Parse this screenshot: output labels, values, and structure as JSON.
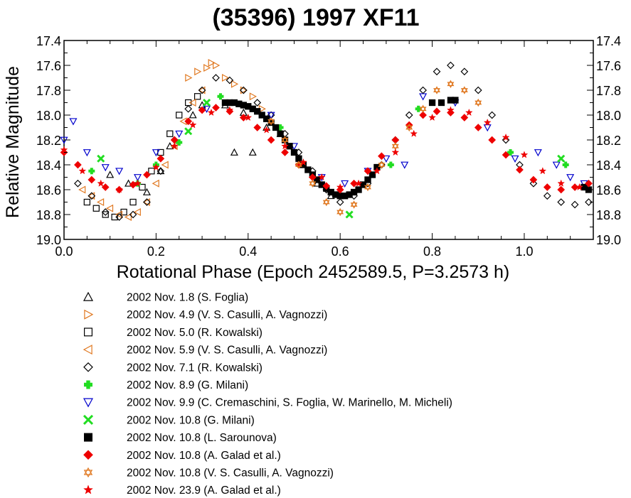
{
  "chart_data": {
    "type": "scatter",
    "title": "(35396) 1997 XF11",
    "xlabel": "Rotational Phase (Epoch 2452589.5, P=3.2573 h)",
    "ylabel": "Relative Magnitude",
    "xlim": [
      0.0,
      1.15
    ],
    "ylim": [
      19.0,
      17.4
    ],
    "y_inverted": true,
    "x_ticks": [
      "0.0",
      "0.2",
      "0.4",
      "0.6",
      "0.8",
      "1.0"
    ],
    "x_tick_values": [
      0.0,
      0.2,
      0.4,
      0.6,
      0.8,
      1.0
    ],
    "y_ticks": [
      "17.4",
      "17.6",
      "17.8",
      "18.0",
      "18.2",
      "18.4",
      "18.6",
      "18.8",
      "19.0"
    ],
    "y_tick_values": [
      17.4,
      17.6,
      17.8,
      18.0,
      18.2,
      18.4,
      18.6,
      18.8,
      19.0
    ],
    "y_ticks_mirrored_right": true,
    "grid": false,
    "legend_position": "below-plot",
    "series": [
      {
        "name": "2002 Nov. 1.8 (S. Foglia)",
        "marker": "triangle-up",
        "color": "#000000",
        "filled": false,
        "x": [
          0.1,
          0.14,
          0.18,
          0.21,
          0.23,
          0.28,
          0.3,
          0.35,
          0.37,
          0.39,
          0.41,
          0.44,
          0.47,
          0.52,
          0.55,
          0.58
        ],
        "y": [
          18.48,
          18.55,
          18.62,
          18.45,
          18.25,
          18.0,
          17.92,
          17.92,
          18.3,
          17.98,
          18.3,
          18.1,
          18.15,
          18.4,
          18.55,
          18.65
        ]
      },
      {
        "name": "2002 Nov. 4.9 (V. S. Casulli, A. Vagnozzi)",
        "marker": "triangle-right",
        "color": "#E07820",
        "filled": false,
        "x": [
          0.27,
          0.29,
          0.31,
          0.32,
          0.33,
          0.35,
          0.37,
          0.39,
          0.41,
          0.43
        ],
        "y": [
          17.7,
          17.65,
          17.62,
          17.58,
          17.6,
          17.7,
          17.75,
          17.8,
          17.85,
          17.95
        ]
      },
      {
        "name": "2002 Nov. 5.0 (R. Kowalski)",
        "marker": "square",
        "color": "#000000",
        "filled": false,
        "x": [
          0.05,
          0.07,
          0.09,
          0.11,
          0.13,
          0.15,
          0.17,
          0.19,
          0.21,
          0.23,
          0.25,
          0.27,
          0.29
        ],
        "y": [
          18.7,
          18.75,
          18.8,
          18.82,
          18.78,
          18.7,
          18.58,
          18.45,
          18.3,
          18.15,
          18.0,
          17.9,
          17.85
        ]
      },
      {
        "name": "2002 Nov. 5.9 (V. S. Casulli, A. Vagnozzi)",
        "marker": "triangle-left",
        "color": "#E07820",
        "filled": false,
        "x": [
          0.04,
          0.06,
          0.08,
          0.1,
          0.12,
          0.14,
          0.16,
          0.18,
          0.2,
          0.22,
          0.24,
          0.26,
          0.28,
          0.3
        ],
        "y": [
          18.6,
          18.65,
          18.7,
          18.75,
          18.8,
          18.82,
          18.78,
          18.7,
          18.55,
          18.4,
          18.25,
          18.05,
          17.9,
          17.8
        ]
      },
      {
        "name": "2002 Nov. 7.1 (R. Kowalski)",
        "marker": "diamond",
        "color": "#000000",
        "filled": false,
        "x": [
          0.03,
          0.06,
          0.09,
          0.12,
          0.15,
          0.18,
          0.21,
          0.24,
          0.27,
          0.3,
          0.33,
          0.36,
          0.39,
          0.42,
          0.45,
          0.48,
          0.51,
          0.54,
          0.57,
          0.6,
          0.63,
          0.66,
          0.69,
          0.72,
          0.75,
          0.78,
          0.81,
          0.84,
          0.87,
          0.9,
          0.93,
          0.96,
          0.99,
          1.02,
          1.05,
          1.08,
          1.11,
          1.14
        ],
        "y": [
          18.55,
          18.65,
          18.78,
          18.82,
          18.8,
          18.7,
          18.45,
          18.2,
          17.95,
          17.8,
          17.7,
          17.72,
          17.8,
          17.9,
          18.0,
          18.15,
          18.3,
          18.45,
          18.6,
          18.7,
          18.65,
          18.55,
          18.4,
          18.2,
          18.0,
          17.8,
          17.65,
          17.6,
          17.65,
          17.8,
          18.0,
          18.2,
          18.4,
          18.55,
          18.65,
          18.7,
          18.72,
          18.7
        ]
      },
      {
        "name": "2002 Nov. 8.9 (G. Milani)",
        "marker": "plus",
        "color": "#22DD22",
        "filled": true,
        "x": [
          0.06,
          0.16,
          0.2,
          0.25,
          0.34,
          0.47,
          0.71,
          0.77,
          0.97,
          1.09,
          1.14
        ],
        "y": [
          18.45,
          18.55,
          18.4,
          18.22,
          17.85,
          18.1,
          18.4,
          17.95,
          18.3,
          18.4,
          18.6
        ]
      },
      {
        "name": "2002 Nov. 9.9 (C. Cremaschini, S. Foglia, W. Marinello, M. Micheli)",
        "marker": "triangle-down",
        "color": "#0000CC",
        "filled": false,
        "x": [
          0.0,
          0.02,
          0.05,
          0.09,
          0.12,
          0.16,
          0.2,
          0.25,
          0.31,
          0.45,
          0.5,
          0.56,
          0.61,
          0.66,
          0.7,
          0.74,
          0.78,
          0.85,
          0.92,
          0.98,
          1.03,
          1.07,
          1.1,
          1.13
        ],
        "y": [
          18.2,
          18.05,
          18.3,
          18.42,
          18.45,
          18.5,
          18.3,
          18.15,
          17.95,
          18.0,
          18.25,
          18.5,
          18.55,
          18.45,
          18.35,
          18.4,
          17.85,
          17.9,
          18.1,
          18.35,
          18.3,
          18.4,
          18.5,
          18.55
        ]
      },
      {
        "name": "2002 Nov. 10.8 (G. Milani)",
        "marker": "x",
        "color": "#22DD22",
        "filled": true,
        "x": [
          0.08,
          0.27,
          0.31,
          0.62,
          1.08
        ],
        "y": [
          18.35,
          18.13,
          17.9,
          18.8,
          18.35
        ]
      },
      {
        "name": "2002 Nov. 10.8 (L. Sarounova)",
        "marker": "square",
        "color": "#000000",
        "filled": true,
        "x": [
          0.35,
          0.36,
          0.37,
          0.38,
          0.39,
          0.4,
          0.41,
          0.42,
          0.43,
          0.44,
          0.45,
          0.46,
          0.47,
          0.48,
          0.49,
          0.5,
          0.51,
          0.52,
          0.53,
          0.54,
          0.55,
          0.56,
          0.57,
          0.58,
          0.59,
          0.6,
          0.61,
          0.62,
          0.63,
          0.64,
          0.65,
          0.66,
          0.67,
          0.68,
          0.8,
          0.82,
          0.84,
          0.85,
          1.13,
          1.14
        ],
        "y": [
          17.9,
          17.9,
          17.9,
          17.91,
          17.92,
          17.93,
          17.95,
          17.97,
          18.0,
          18.03,
          18.06,
          18.1,
          18.15,
          18.2,
          18.25,
          18.3,
          18.35,
          18.4,
          18.44,
          18.48,
          18.52,
          18.56,
          18.59,
          18.62,
          18.64,
          18.65,
          18.65,
          18.64,
          18.62,
          18.6,
          18.56,
          18.52,
          18.48,
          18.42,
          17.9,
          17.9,
          17.88,
          17.88,
          18.58,
          18.6
        ]
      },
      {
        "name": "2002 Nov. 10.8 (A. Galad et al.)",
        "marker": "diamond",
        "color": "#EE0000",
        "filled": true,
        "x": [
          0.0,
          0.03,
          0.06,
          0.09,
          0.12,
          0.15,
          0.18,
          0.21,
          0.24,
          0.27,
          0.3,
          0.33,
          0.36,
          0.39,
          0.42,
          0.45,
          0.48,
          0.51,
          0.54,
          0.57,
          0.6,
          0.63,
          0.66,
          0.69,
          0.72,
          0.75,
          0.78,
          0.81,
          0.84,
          0.87,
          0.9,
          0.93,
          0.96,
          0.99,
          1.02,
          1.05,
          1.08,
          1.11,
          1.14
        ],
        "y": [
          18.3,
          18.4,
          18.52,
          18.58,
          18.6,
          18.56,
          18.48,
          18.35,
          18.2,
          18.05,
          17.96,
          17.94,
          17.97,
          18.02,
          18.1,
          18.2,
          18.3,
          18.4,
          18.5,
          18.57,
          18.6,
          18.55,
          18.45,
          18.33,
          18.2,
          18.08,
          18.0,
          17.97,
          17.98,
          18.02,
          18.1,
          18.2,
          18.32,
          18.44,
          18.52,
          18.58,
          18.6,
          18.58,
          18.55
        ]
      },
      {
        "name": "2002 Nov. 10.8 (V. S. Casulli, A. Vagnozzi)",
        "marker": "star-of-david",
        "color": "#E07820",
        "filled": false,
        "x": [
          0.45,
          0.48,
          0.51,
          0.54,
          0.57,
          0.6,
          0.63,
          0.66,
          0.69,
          0.72,
          0.75,
          0.78,
          0.81,
          0.84,
          0.87,
          0.9
        ],
        "y": [
          18.05,
          18.2,
          18.4,
          18.55,
          18.7,
          18.78,
          18.72,
          18.58,
          18.4,
          18.25,
          18.1,
          17.95,
          17.8,
          17.75,
          17.8,
          17.9
        ]
      },
      {
        "name": "2002 Nov. 23.9 (A. Galad et al.)",
        "marker": "star",
        "color": "#EE0000",
        "filled": true,
        "x": [
          0.0,
          0.04,
          0.08,
          0.12,
          0.16,
          0.2,
          0.24,
          0.28,
          0.32,
          0.36,
          0.4,
          0.44,
          0.48,
          0.52,
          0.56,
          0.6,
          0.64,
          0.68,
          0.72,
          0.76,
          0.8,
          0.84,
          0.88,
          0.92,
          0.96,
          1.0,
          1.04,
          1.08,
          1.12
        ],
        "y": [
          18.28,
          18.45,
          18.55,
          18.6,
          18.55,
          18.42,
          18.25,
          18.08,
          17.98,
          17.96,
          18.02,
          18.12,
          18.25,
          18.38,
          18.5,
          18.58,
          18.55,
          18.45,
          18.3,
          18.15,
          18.02,
          17.96,
          17.98,
          18.06,
          18.18,
          18.32,
          18.45,
          18.55,
          18.58
        ]
      }
    ]
  }
}
